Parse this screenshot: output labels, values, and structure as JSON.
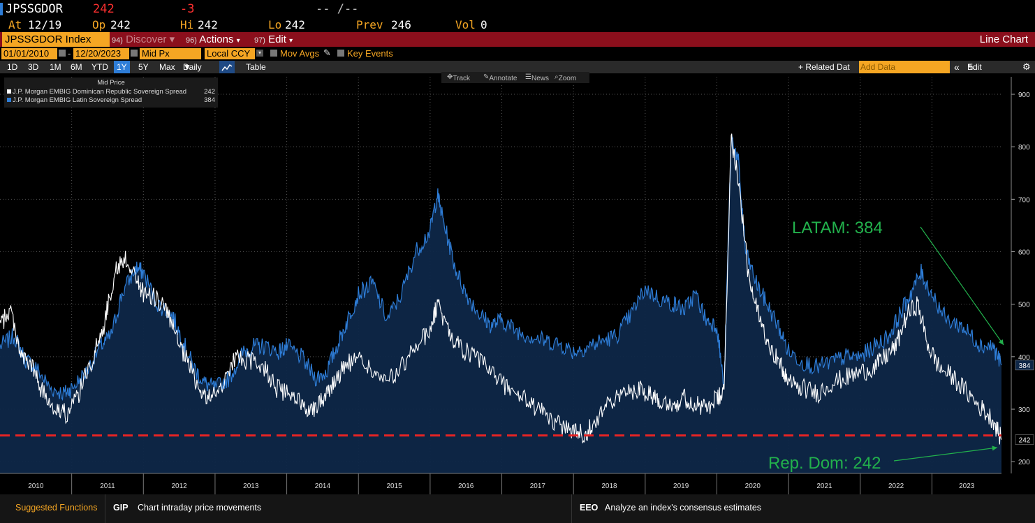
{
  "header": {
    "ticker": "JPSSGDOR",
    "last": "242",
    "change": "-3",
    "time": "-- /--",
    "at_label": "At",
    "at_value": "12/19",
    "op_label": "Op",
    "op_value": "242",
    "hi_label": "Hi",
    "hi_value": "242",
    "lo_label": "Lo",
    "lo_value": "242",
    "prev_label": "Prev",
    "prev_value": "246",
    "vol_label": "Vol",
    "vol_value": "0"
  },
  "menubar": {
    "security": "JPSSGDOR Index",
    "discover_num": "94)",
    "discover": "Discover",
    "actions_num": "96)",
    "actions": "Actions",
    "edit_num": "97)",
    "edit": "Edit",
    "view": "Line Chart"
  },
  "controls": {
    "start_date": "01/01/2010",
    "end_date": "12/20/2023",
    "field": "Mid Px",
    "currency": "Local CCY",
    "mov_avgs": "Mov Avgs",
    "key_events": "Key Events"
  },
  "periods": [
    "1D",
    "3D",
    "1M",
    "6M",
    "YTD",
    "1Y",
    "5Y",
    "Max"
  ],
  "selected_period": "1Y",
  "frequency": "Daily",
  "table_label": "Table",
  "related": "+ Related Dat",
  "add_data": "Add Data",
  "edit_chart": "Edit Chart",
  "tools": {
    "track": "Track",
    "annotate": "Annotate",
    "news": "News",
    "zoom": "Zoom"
  },
  "legend": {
    "title": "Mid Price",
    "items": [
      {
        "name": "J.P. Morgan EMBIG Dominican Republic Sovereign Spread",
        "value": "242",
        "color": "#ffffff"
      },
      {
        "name": "J.P. Morgan EMBIG Latin Sovereign Spread",
        "value": "384",
        "color": "#2e7dd7"
      }
    ]
  },
  "annotations": {
    "latam": "LATAM: 384",
    "repdom": "Rep. Dom: 242"
  },
  "last_labels": {
    "latam": "384",
    "repdom": "242"
  },
  "chart_data": {
    "type": "line",
    "title": "Mid Price",
    "ylim": [
      180,
      920
    ],
    "yticks": [
      200,
      300,
      400,
      500,
      600,
      700,
      800,
      900
    ],
    "xlabels": [
      "2010",
      "2011",
      "2012",
      "2013",
      "2014",
      "2015",
      "2016",
      "2017",
      "2018",
      "2019",
      "2020",
      "2021",
      "2022",
      "2023"
    ],
    "x_start_year": 2010.0,
    "x_end_year": 2023.97,
    "reference_line": 250,
    "series": [
      {
        "name": "J.P. Morgan EMBIG Latin Sovereign Spread",
        "color": "#2e7dd7",
        "points": [
          [
            2010.0,
            420
          ],
          [
            2010.2,
            440
          ],
          [
            2010.35,
            395
          ],
          [
            2010.5,
            380
          ],
          [
            2010.7,
            340
          ],
          [
            2010.9,
            330
          ],
          [
            2011.0,
            340
          ],
          [
            2011.2,
            370
          ],
          [
            2011.4,
            420
          ],
          [
            2011.55,
            440
          ],
          [
            2011.7,
            520
          ],
          [
            2011.9,
            570
          ],
          [
            2012.0,
            560
          ],
          [
            2012.2,
            500
          ],
          [
            2012.4,
            480
          ],
          [
            2012.55,
            430
          ],
          [
            2012.7,
            380
          ],
          [
            2012.85,
            350
          ],
          [
            2013.0,
            340
          ],
          [
            2013.2,
            360
          ],
          [
            2013.4,
            410
          ],
          [
            2013.55,
            420
          ],
          [
            2013.7,
            420
          ],
          [
            2013.9,
            410
          ],
          [
            2014.0,
            420
          ],
          [
            2014.2,
            400
          ],
          [
            2014.4,
            360
          ],
          [
            2014.55,
            370
          ],
          [
            2014.7,
            420
          ],
          [
            2014.85,
            470
          ],
          [
            2015.0,
            520
          ],
          [
            2015.2,
            540
          ],
          [
            2015.4,
            470
          ],
          [
            2015.6,
            520
          ],
          [
            2015.8,
            600
          ],
          [
            2016.0,
            640
          ],
          [
            2016.1,
            710
          ],
          [
            2016.2,
            650
          ],
          [
            2016.35,
            570
          ],
          [
            2016.5,
            520
          ],
          [
            2016.7,
            480
          ],
          [
            2016.85,
            460
          ],
          [
            2017.0,
            470
          ],
          [
            2017.2,
            450
          ],
          [
            2017.4,
            440
          ],
          [
            2017.6,
            430
          ],
          [
            2017.8,
            425
          ],
          [
            2018.0,
            410
          ],
          [
            2018.2,
            420
          ],
          [
            2018.4,
            430
          ],
          [
            2018.6,
            440
          ],
          [
            2018.8,
            480
          ],
          [
            2019.0,
            530
          ],
          [
            2019.2,
            510
          ],
          [
            2019.4,
            500
          ],
          [
            2019.55,
            490
          ],
          [
            2019.7,
            520
          ],
          [
            2019.85,
            470
          ],
          [
            2020.0,
            460
          ],
          [
            2020.1,
            340
          ],
          [
            2020.2,
            820
          ],
          [
            2020.3,
            770
          ],
          [
            2020.4,
            600
          ],
          [
            2020.55,
            540
          ],
          [
            2020.7,
            500
          ],
          [
            2020.85,
            460
          ],
          [
            2021.0,
            410
          ],
          [
            2021.2,
            390
          ],
          [
            2021.4,
            380
          ],
          [
            2021.6,
            390
          ],
          [
            2021.8,
            400
          ],
          [
            2022.0,
            400
          ],
          [
            2022.2,
            420
          ],
          [
            2022.4,
            440
          ],
          [
            2022.55,
            480
          ],
          [
            2022.7,
            520
          ],
          [
            2022.85,
            560
          ],
          [
            2023.0,
            520
          ],
          [
            2023.2,
            470
          ],
          [
            2023.4,
            460
          ],
          [
            2023.55,
            440
          ],
          [
            2023.7,
            420
          ],
          [
            2023.85,
            420
          ],
          [
            2023.97,
            384
          ]
        ]
      },
      {
        "name": "J.P. Morgan EMBIG Dominican Republic Sovereign Spread",
        "color": "#ffffff",
        "points": [
          [
            2010.0,
            460
          ],
          [
            2010.15,
            490
          ],
          [
            2010.3,
            400
          ],
          [
            2010.45,
            380
          ],
          [
            2010.6,
            330
          ],
          [
            2010.8,
            300
          ],
          [
            2010.95,
            290
          ],
          [
            2011.1,
            330
          ],
          [
            2011.3,
            400
          ],
          [
            2011.45,
            460
          ],
          [
            2011.6,
            560
          ],
          [
            2011.75,
            590
          ],
          [
            2011.9,
            550
          ],
          [
            2012.0,
            520
          ],
          [
            2012.2,
            510
          ],
          [
            2012.35,
            480
          ],
          [
            2012.5,
            420
          ],
          [
            2012.65,
            380
          ],
          [
            2012.8,
            330
          ],
          [
            2012.95,
            320
          ],
          [
            2013.1,
            350
          ],
          [
            2013.3,
            400
          ],
          [
            2013.5,
            390
          ],
          [
            2013.7,
            380
          ],
          [
            2013.85,
            340
          ],
          [
            2014.0,
            330
          ],
          [
            2014.2,
            310
          ],
          [
            2014.35,
            300
          ],
          [
            2014.5,
            320
          ],
          [
            2014.65,
            350
          ],
          [
            2014.8,
            380
          ],
          [
            2015.0,
            400
          ],
          [
            2015.2,
            370
          ],
          [
            2015.4,
            350
          ],
          [
            2015.6,
            380
          ],
          [
            2015.8,
            420
          ],
          [
            2016.0,
            450
          ],
          [
            2016.1,
            500
          ],
          [
            2016.25,
            450
          ],
          [
            2016.4,
            420
          ],
          [
            2016.6,
            400
          ],
          [
            2016.8,
            380
          ],
          [
            2017.0,
            350
          ],
          [
            2017.2,
            330
          ],
          [
            2017.4,
            310
          ],
          [
            2017.6,
            290
          ],
          [
            2017.8,
            270
          ],
          [
            2018.0,
            260
          ],
          [
            2018.15,
            250
          ],
          [
            2018.3,
            280
          ],
          [
            2018.5,
            310
          ],
          [
            2018.7,
            330
          ],
          [
            2018.9,
            340
          ],
          [
            2019.05,
            330
          ],
          [
            2019.2,
            320
          ],
          [
            2019.4,
            310
          ],
          [
            2019.55,
            320
          ],
          [
            2019.7,
            310
          ],
          [
            2019.85,
            300
          ],
          [
            2020.0,
            320
          ],
          [
            2020.1,
            330
          ],
          [
            2020.2,
            820
          ],
          [
            2020.3,
            740
          ],
          [
            2020.45,
            540
          ],
          [
            2020.6,
            470
          ],
          [
            2020.75,
            420
          ],
          [
            2020.9,
            380
          ],
          [
            2021.0,
            350
          ],
          [
            2021.2,
            340
          ],
          [
            2021.4,
            330
          ],
          [
            2021.6,
            350
          ],
          [
            2021.8,
            360
          ],
          [
            2022.0,
            370
          ],
          [
            2022.2,
            380
          ],
          [
            2022.35,
            400
          ],
          [
            2022.5,
            420
          ],
          [
            2022.65,
            480
          ],
          [
            2022.8,
            500
          ],
          [
            2022.95,
            420
          ],
          [
            2023.1,
            380
          ],
          [
            2023.3,
            360
          ],
          [
            2023.5,
            330
          ],
          [
            2023.7,
            300
          ],
          [
            2023.85,
            280
          ],
          [
            2023.97,
            242
          ]
        ]
      }
    ]
  },
  "suggested": {
    "title": "Suggested Functions",
    "f1_code": "GIP",
    "f1_desc": "Chart intraday price movements",
    "f2_code": "EEO",
    "f2_desc": "Analyze an index's consensus estimates"
  }
}
